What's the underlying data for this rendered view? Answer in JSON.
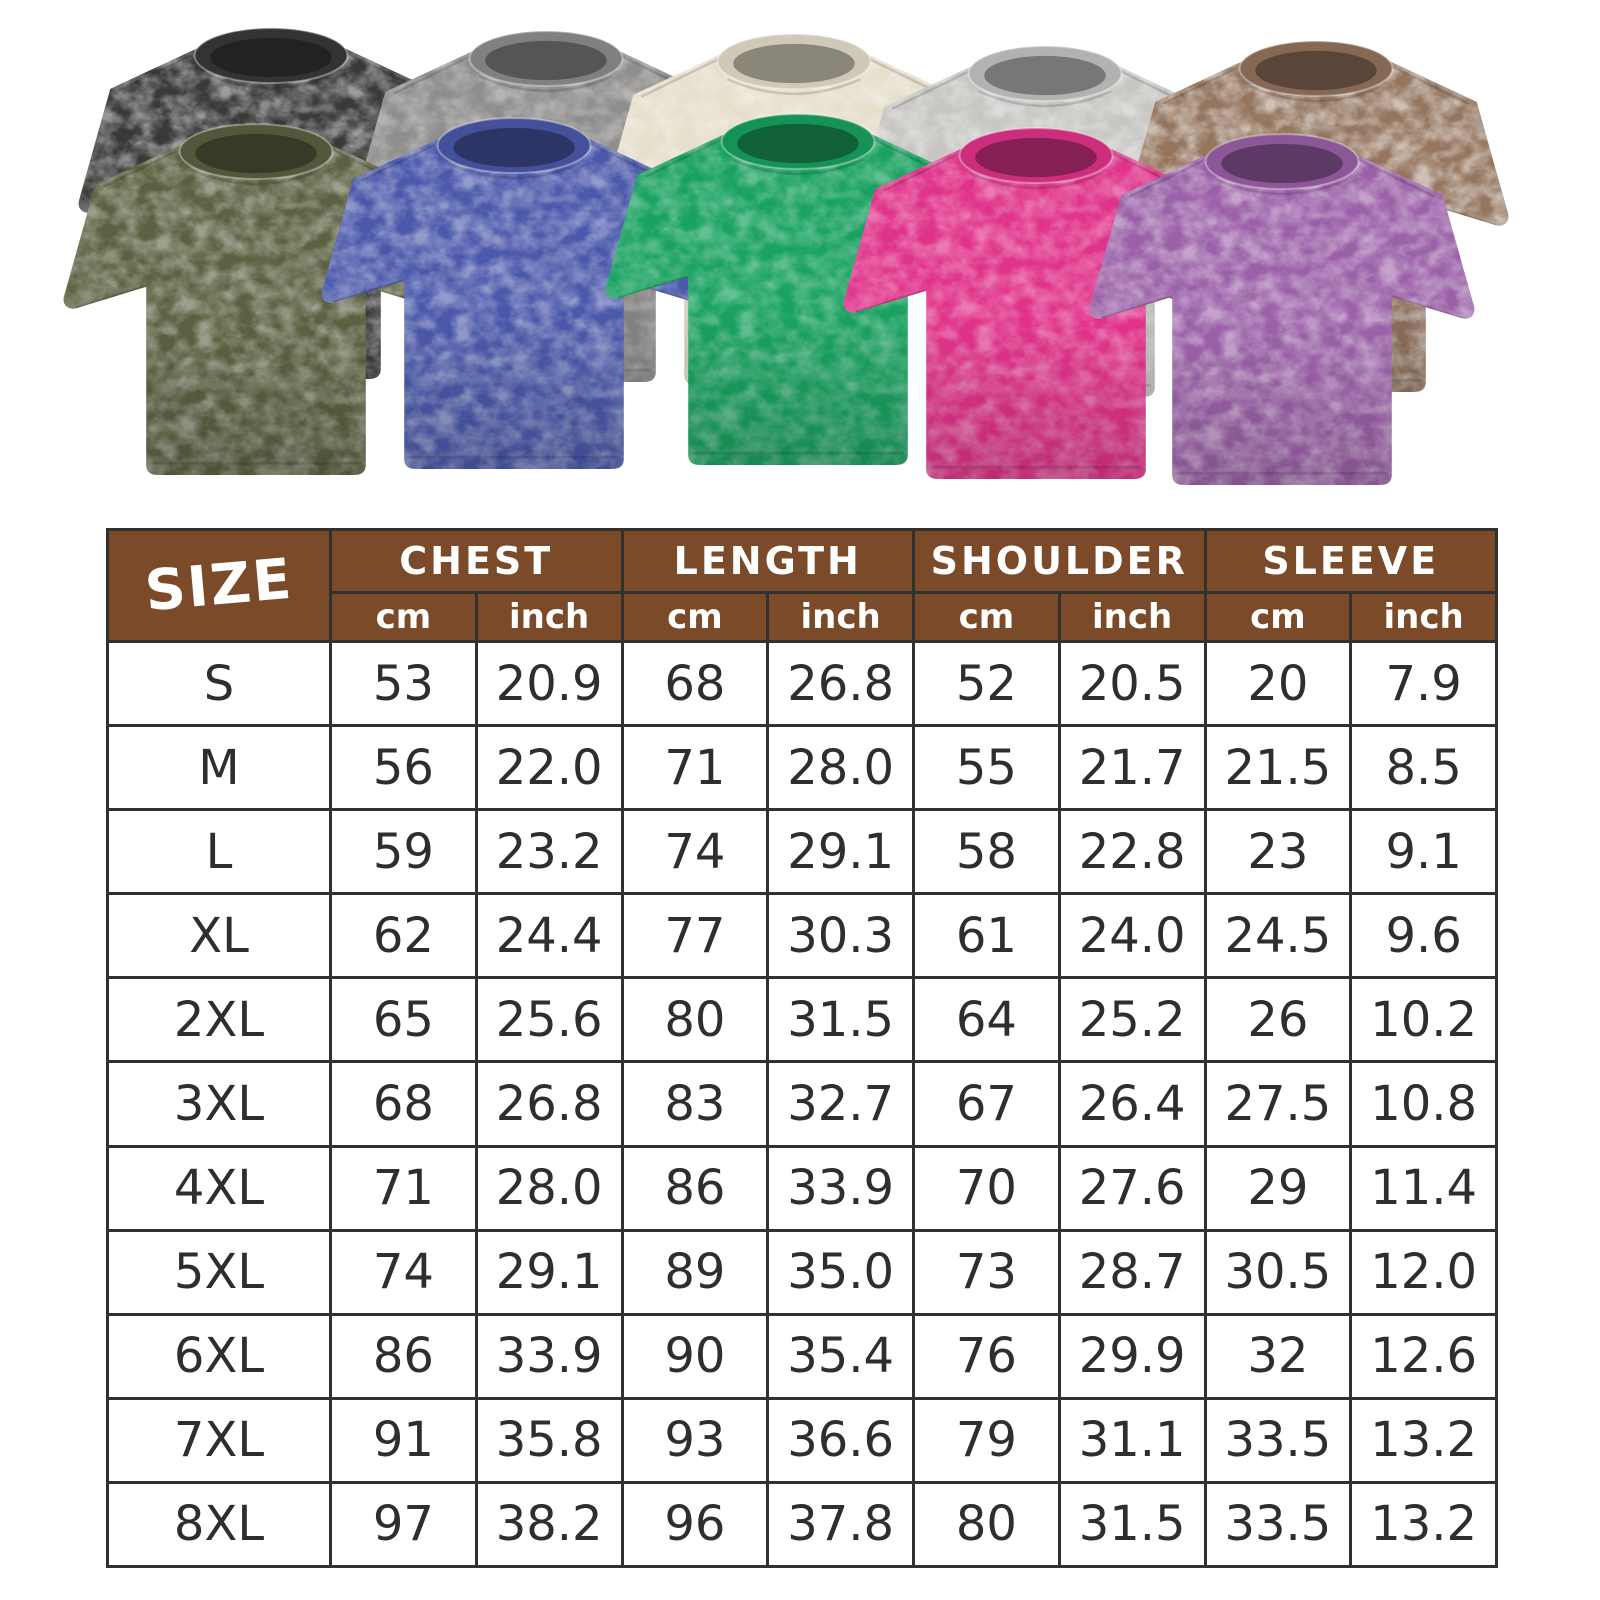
{
  "shirts": {
    "back_row": [
      {
        "name": "black",
        "color": "#3a3938"
      },
      {
        "name": "grey",
        "color": "#908e8c"
      },
      {
        "name": "beige",
        "color": "#e7dfcc"
      },
      {
        "name": "light-grey",
        "color": "#c8c6c3"
      },
      {
        "name": "brown",
        "color": "#94755e"
      }
    ],
    "front_row": [
      {
        "name": "army-green",
        "color": "#5c6141"
      },
      {
        "name": "blue",
        "color": "#4b59ab"
      },
      {
        "name": "green",
        "color": "#1aa261"
      },
      {
        "name": "rose-red",
        "color": "#e0338a"
      },
      {
        "name": "purple",
        "color": "#9b61a8"
      }
    ]
  },
  "size_chart": {
    "corner_label": "SIZE",
    "groups": [
      {
        "label": "CHEST",
        "units": [
          "cm",
          "inch"
        ]
      },
      {
        "label": "LENGTH",
        "units": [
          "cm",
          "inch"
        ]
      },
      {
        "label": "SHOULDER",
        "units": [
          "cm",
          "inch"
        ]
      },
      {
        "label": "SLEEVE",
        "units": [
          "cm",
          "inch"
        ]
      }
    ]
  },
  "chart_data": {
    "type": "table",
    "title": "SIZE",
    "column_groups": [
      "CHEST",
      "LENGTH",
      "SHOULDER",
      "SLEEVE"
    ],
    "units_per_group": [
      "cm",
      "inch"
    ],
    "columns": [
      "SIZE",
      "CHEST cm",
      "CHEST inch",
      "LENGTH cm",
      "LENGTH inch",
      "SHOULDER cm",
      "SHOULDER inch",
      "SLEEVE cm",
      "SLEEVE inch"
    ],
    "rows": [
      [
        "S",
        "53",
        "20.9",
        "68",
        "26.8",
        "52",
        "20.5",
        "20",
        "7.9"
      ],
      [
        "M",
        "56",
        "22.0",
        "71",
        "28.0",
        "55",
        "21.7",
        "21.5",
        "8.5"
      ],
      [
        "L",
        "59",
        "23.2",
        "74",
        "29.1",
        "58",
        "22.8",
        "23",
        "9.1"
      ],
      [
        "XL",
        "62",
        "24.4",
        "77",
        "30.3",
        "61",
        "24.0",
        "24.5",
        "9.6"
      ],
      [
        "2XL",
        "65",
        "25.6",
        "80",
        "31.5",
        "64",
        "25.2",
        "26",
        "10.2"
      ],
      [
        "3XL",
        "68",
        "26.8",
        "83",
        "32.7",
        "67",
        "26.4",
        "27.5",
        "10.8"
      ],
      [
        "4XL",
        "71",
        "28.0",
        "86",
        "33.9",
        "70",
        "27.6",
        "29",
        "11.4"
      ],
      [
        "5XL",
        "74",
        "29.1",
        "89",
        "35.0",
        "73",
        "28.7",
        "30.5",
        "12.0"
      ],
      [
        "6XL",
        "86",
        "33.9",
        "90",
        "35.4",
        "76",
        "29.9",
        "32",
        "12.6"
      ],
      [
        "7XL",
        "91",
        "35.8",
        "93",
        "36.6",
        "79",
        "31.1",
        "33.5",
        "13.2"
      ],
      [
        "8XL",
        "97",
        "38.2",
        "96",
        "37.8",
        "80",
        "31.5",
        "33.5",
        "13.2"
      ]
    ]
  },
  "colors": {
    "header_bg": "#7b4a28",
    "header_text": "#ffffff",
    "grid_line": "#33312f",
    "cell_bg": "#ffffff",
    "value_text": "#2f2e2d",
    "page_bg": "#ffffff"
  }
}
